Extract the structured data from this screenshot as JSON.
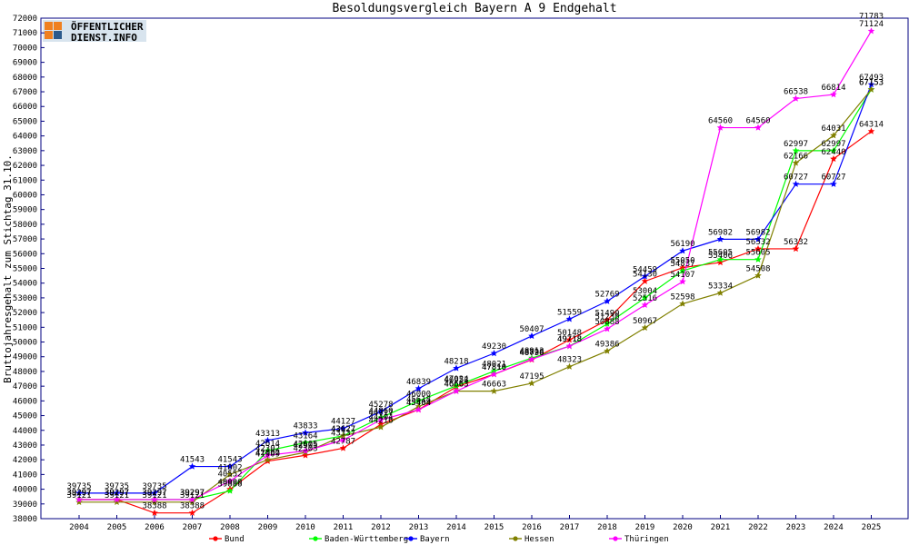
{
  "logo": {
    "line1": "ÖFFENTLICHER",
    "line2": "DIENST.INFO"
  },
  "chart_data": {
    "type": "line",
    "title": "Besoldungsvergleich Bayern A 9 Endgehalt",
    "xlabel": "",
    "ylabel": "Bruttojahresgehalt zum Stichtag 31.10.",
    "ylim": [
      38000,
      72000
    ],
    "ystep": 1000,
    "grid": false,
    "legend_position": "bottom",
    "categories": [
      "2004",
      "2005",
      "2006",
      "2007",
      "2008",
      "2009",
      "2010",
      "2011",
      "2012",
      "2013",
      "2014",
      "2015",
      "2016",
      "2017",
      "2018",
      "2019",
      "2020",
      "2021",
      "2022",
      "2023",
      "2024",
      "2025"
    ],
    "series": [
      {
        "name": "Bund",
        "color": "#ff0000",
        "values": [
          39297,
          39297,
          38388,
          38388,
          40000,
          41909,
          42303,
          42787,
          44404,
          45404,
          46953,
          47810,
          48796,
          50148,
          51490,
          54130,
          55050,
          55406,
          56332,
          56332,
          62440,
          64314
        ]
      },
      {
        "name": "Baden-Württemberg",
        "color": "#00ff00",
        "values": [
          39297,
          39297,
          39297,
          39297,
          39886,
          42614,
          43164,
          43627,
          44860,
          46000,
          47024,
          48021,
          48913,
          49718,
          51230,
          53004,
          54837,
          55605,
          55605,
          62997,
          62997,
          67153
        ]
      },
      {
        "name": "Bayern",
        "color": "#0000ff",
        "values": [
          39735,
          39735,
          39735,
          41543,
          41543,
          43313,
          43833,
          44127,
          45278,
          46839,
          48218,
          49230,
          50407,
          51559,
          52769,
          54459,
          56190,
          56982,
          56982,
          60727,
          60727,
          67493
        ]
      },
      {
        "name": "Hessen",
        "color": "#808000",
        "values": [
          39121,
          39121,
          39121,
          39121,
          41002,
          42002,
          42505,
          43627,
          44216,
          45618,
          46663,
          46663,
          47195,
          48323,
          49386,
          50967,
          52598,
          53334,
          54508,
          62166,
          64031,
          67153
        ]
      },
      {
        "name": "Thüringen",
        "color": "#ff00ff",
        "values": [
          39297,
          39297,
          39297,
          39297,
          40552,
          42302,
          42605,
          43337,
          44717,
          45404,
          46663,
          47810,
          48828,
          49718,
          50888,
          52516,
          54107,
          64560,
          64560,
          66538,
          66814,
          71124
        ]
      }
    ],
    "extra_labels": [
      {
        "category": "2025",
        "value": 71783
      }
    ]
  }
}
